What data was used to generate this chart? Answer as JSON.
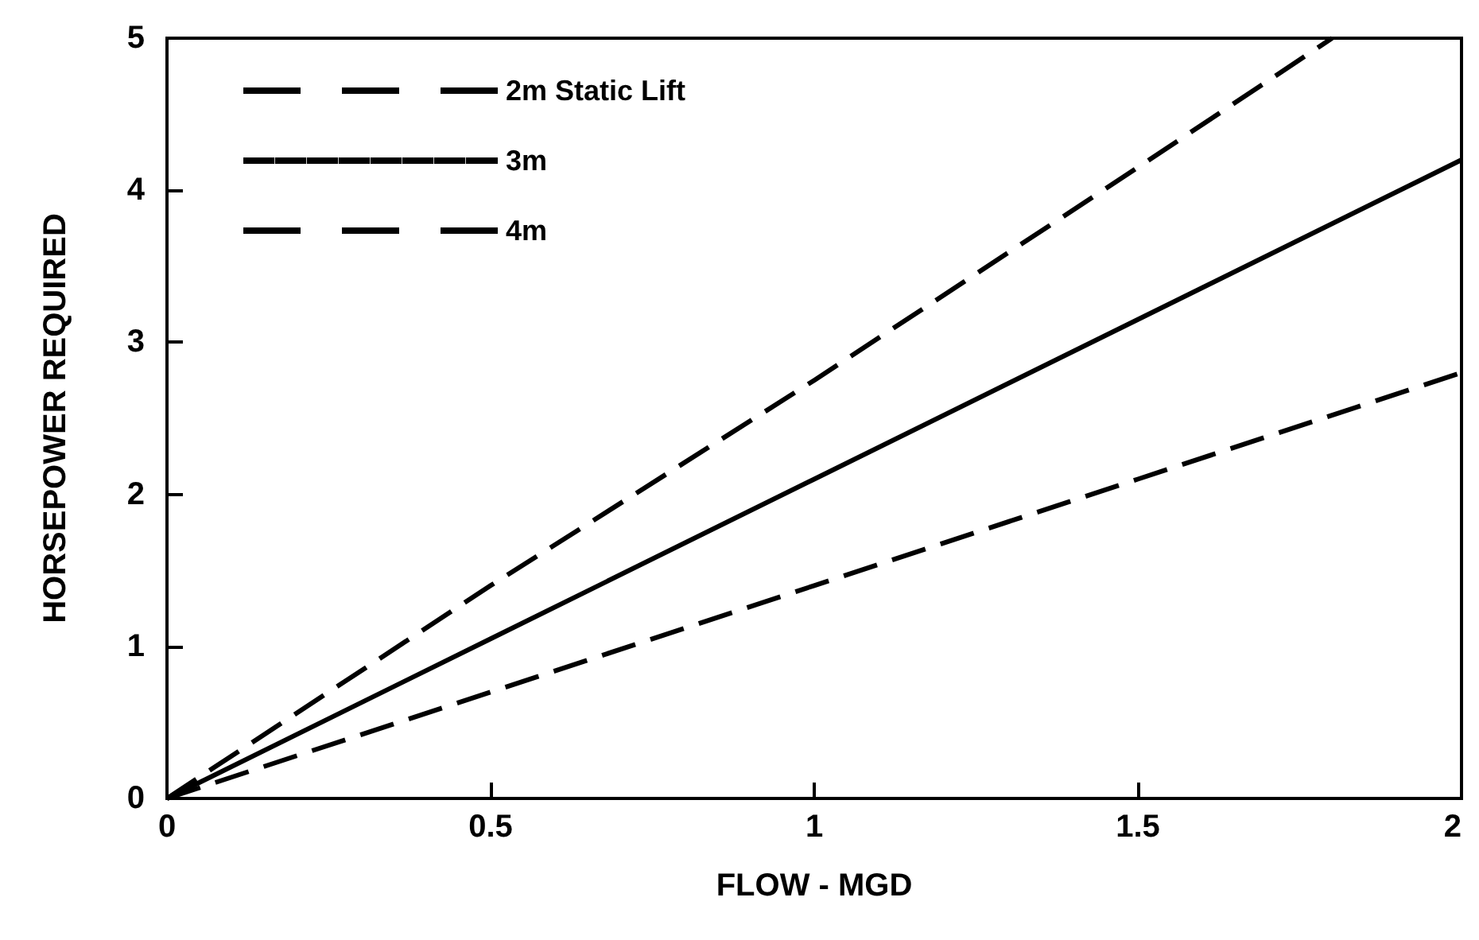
{
  "chart_data": {
    "type": "line",
    "xlabel": "FLOW - MGD",
    "ylabel": "HORSEPOWER REQUIRED",
    "xlim": [
      0,
      2
    ],
    "ylim": [
      0,
      5
    ],
    "xticks": [
      0,
      0.5,
      1,
      1.5,
      2
    ],
    "yticks": [
      0,
      1,
      2,
      3,
      4,
      5
    ],
    "grid": false,
    "legend": "top left",
    "marker": "none",
    "series": [
      {
        "name": "2m Static Lift",
        "color": "#000000",
        "line_style": "dashed",
        "x": [
          0,
          0.5,
          1,
          1.5,
          2
        ],
        "values": [
          0,
          0.7,
          1.4,
          2.1,
          2.8
        ]
      },
      {
        "name": "3m",
        "color": "#000000",
        "line_style": "solid",
        "x": [
          0,
          0.5,
          1,
          1.5,
          2
        ],
        "values": [
          0,
          1.05,
          2.1,
          3.15,
          4.2
        ]
      },
      {
        "name": "4m",
        "color": "#000000",
        "line_style": "dashed",
        "x": [
          0,
          0.5,
          1,
          1.5,
          1.8
        ],
        "values": [
          0,
          1.4,
          2.75,
          4.15,
          5
        ]
      }
    ]
  }
}
